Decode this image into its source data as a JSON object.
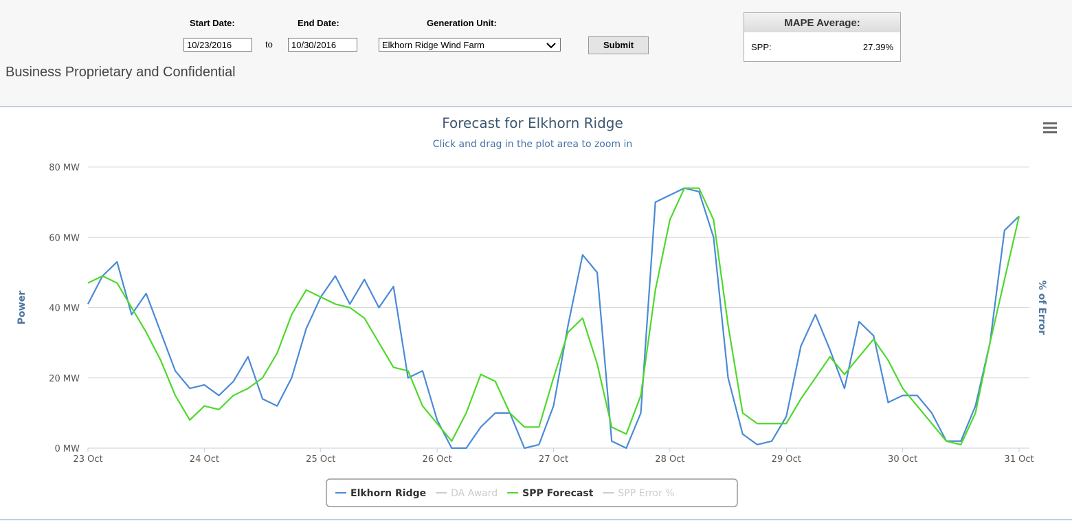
{
  "form": {
    "start_label": "Start Date:",
    "start_value": "10/23/2016",
    "to": "to",
    "end_label": "End Date:",
    "end_value": "10/30/2016",
    "unit_label": "Generation Unit:",
    "unit_value": "Elkhorn Ridge Wind Farm",
    "submit": "Submit"
  },
  "notice": "Business Proprietary and Confidential",
  "mape": {
    "title": "MAPE Average:",
    "label": "SPP:",
    "value": "27.39%"
  },
  "chart_data": {
    "type": "line",
    "title": "Forecast for Elkhorn Ridge",
    "subtitle": "Click and drag in the plot area to zoom in",
    "y_label": "Power",
    "y2_label": "% of Error",
    "x": [
      23,
      23.125,
      23.25,
      23.375,
      23.5,
      23.625,
      23.75,
      23.875,
      24,
      24.125,
      24.25,
      24.375,
      24.5,
      24.625,
      24.75,
      24.875,
      25,
      25.125,
      25.25,
      25.375,
      25.5,
      25.625,
      25.75,
      25.875,
      26,
      26.125,
      26.25,
      26.375,
      26.5,
      26.625,
      26.75,
      26.875,
      27,
      27.125,
      27.25,
      27.375,
      27.5,
      27.625,
      27.75,
      27.875,
      28,
      28.125,
      28.25,
      28.375,
      28.5,
      28.625,
      28.75,
      28.875,
      29,
      29.125,
      29.25,
      29.375,
      29.5,
      29.625,
      29.75,
      29.875,
      30,
      30.125,
      30.25,
      30.375,
      30.5,
      30.625,
      30.75,
      30.875,
      31
    ],
    "xlim": [
      23,
      31
    ],
    "xticks": [
      {
        "value": 23,
        "label": "23 Oct"
      },
      {
        "value": 24,
        "label": "24 Oct"
      },
      {
        "value": 25,
        "label": "25 Oct"
      },
      {
        "value": 26,
        "label": "26 Oct"
      },
      {
        "value": 27,
        "label": "27 Oct"
      },
      {
        "value": 28,
        "label": "28 Oct"
      },
      {
        "value": 29,
        "label": "29 Oct"
      },
      {
        "value": 30,
        "label": "30 Oct"
      },
      {
        "value": 31,
        "label": "31 Oct"
      }
    ],
    "ylim": [
      0,
      80
    ],
    "yticks": [
      {
        "value": 0,
        "label": "0 MW"
      },
      {
        "value": 20,
        "label": "20 MW"
      },
      {
        "value": 40,
        "label": "40 MW"
      },
      {
        "value": 60,
        "label": "60 MW"
      },
      {
        "value": 80,
        "label": "80 MW"
      }
    ],
    "grid": true,
    "series": [
      {
        "name": "Elkhorn Ridge",
        "color": "#4a8ad6",
        "values": [
          41,
          49,
          53,
          38,
          44,
          33,
          22,
          17,
          18,
          15,
          19,
          26,
          14,
          12,
          20,
          34,
          43,
          49,
          41,
          48,
          40,
          46,
          20,
          22,
          8,
          0,
          0,
          6,
          10,
          10,
          0,
          1,
          12,
          35,
          55,
          50,
          2,
          0,
          10,
          70,
          72,
          74,
          73,
          60,
          20,
          4,
          1,
          2,
          9,
          29,
          38,
          28,
          17,
          36,
          32,
          13,
          15,
          15,
          10,
          2,
          2,
          12,
          30,
          62,
          66
        ]
      },
      {
        "name": "SPP Forecast",
        "color": "#4fd82c",
        "values": [
          47,
          49,
          47,
          40,
          33,
          25,
          15,
          8,
          12,
          11,
          15,
          17,
          20,
          27,
          38,
          45,
          43,
          41,
          40,
          37,
          30,
          23,
          22,
          12,
          7,
          2,
          10,
          21,
          19,
          10,
          6,
          6,
          20,
          33,
          37,
          24,
          6,
          4,
          15,
          45,
          65,
          74,
          74,
          65,
          35,
          10,
          7,
          7,
          7,
          14,
          20,
          26,
          21,
          26,
          31,
          25,
          17,
          12,
          7,
          2,
          1,
          10,
          30,
          48,
          66
        ]
      }
    ],
    "hidden_series": [
      {
        "name": "DA Award",
        "position": 1
      },
      {
        "name": "SPP Error %",
        "position": 3
      }
    ]
  }
}
